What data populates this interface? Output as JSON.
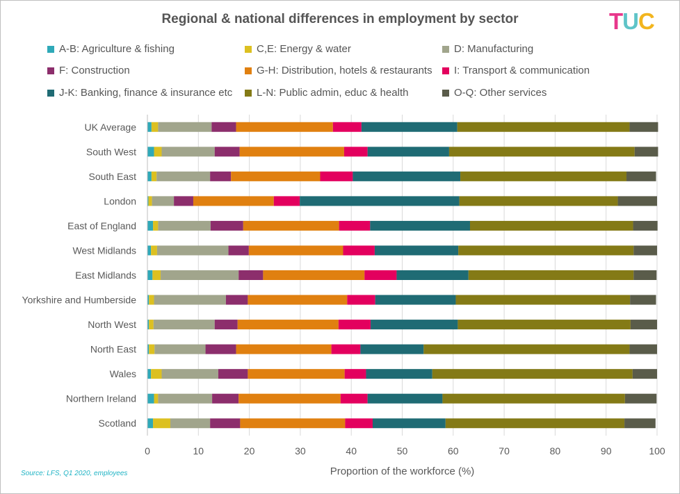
{
  "header": {
    "title": "Regional & national differences in employment by sector",
    "logo_letters": [
      "T",
      "U",
      "C"
    ],
    "logo_colors": [
      "#e8378b",
      "#5fc4c8",
      "#f2b51e"
    ]
  },
  "footer": {
    "source": "Source: LFS, Q1 2020, employees"
  },
  "chart_data": {
    "type": "bar",
    "orientation": "horizontal",
    "stacked": true,
    "title": "Regional & national differences in employment by sector",
    "xlabel": "Proportion of the workforce (%)",
    "ylabel": "",
    "xlim": [
      0,
      100
    ],
    "xticks": [
      0,
      10,
      20,
      30,
      40,
      50,
      60,
      70,
      80,
      90,
      100
    ],
    "grid": true,
    "legend_position": "top",
    "categories": [
      "UK Average",
      "South West",
      "South East",
      "London",
      "East of England",
      "West Midlands",
      "East Midlands",
      "Yorkshire and Humberside",
      "North West",
      "North East",
      "Wales",
      "Northern Ireland",
      "Scotland"
    ],
    "series": [
      {
        "name": "A-B: Agriculture & fishing",
        "color": "#2fa9b8",
        "values": [
          0.8,
          1.3,
          0.8,
          0.2,
          1.1,
          0.7,
          1.0,
          0.3,
          0.3,
          0.3,
          0.7,
          1.3,
          1.1
        ]
      },
      {
        "name": "C,E: Energy & water",
        "color": "#dcc021",
        "values": [
          1.3,
          1.5,
          1.0,
          0.7,
          1.0,
          1.2,
          1.6,
          1.0,
          0.9,
          1.1,
          2.1,
          0.8,
          3.4
        ]
      },
      {
        "name": "D: Manufacturing",
        "color": "#a1a58c",
        "values": [
          10.5,
          10.4,
          10.5,
          4.3,
          10.3,
          14.0,
          15.3,
          14.1,
          12.0,
          10.0,
          11.1,
          10.6,
          7.8
        ]
      },
      {
        "name": "F: Construction",
        "color": "#8c2e6c",
        "values": [
          4.8,
          4.9,
          4.1,
          3.8,
          6.4,
          4.0,
          4.8,
          4.3,
          4.5,
          6.0,
          5.8,
          5.2,
          5.9
        ]
      },
      {
        "name": "G-H: Distribution, hotels & restaurants",
        "color": "#e08010",
        "values": [
          19.0,
          20.5,
          17.5,
          15.8,
          18.8,
          18.5,
          19.9,
          19.5,
          19.8,
          18.7,
          19.0,
          20.0,
          20.6
        ]
      },
      {
        "name": "I: Transport & communication",
        "color": "#e3005e",
        "values": [
          5.6,
          4.6,
          6.4,
          5.1,
          6.1,
          6.2,
          6.3,
          5.5,
          6.3,
          5.7,
          4.2,
          5.3,
          5.4
        ]
      },
      {
        "name": "J-K: Banking, finance & insurance etc",
        "color": "#1f6b74",
        "values": [
          18.8,
          16.0,
          21.1,
          31.3,
          19.6,
          16.4,
          14.1,
          15.8,
          17.1,
          12.4,
          13.0,
          14.7,
          14.3
        ]
      },
      {
        "name": "L-N: Public admin, educ & health",
        "color": "#847a16",
        "values": [
          33.8,
          36.4,
          32.6,
          31.1,
          32.0,
          34.4,
          32.4,
          34.2,
          33.9,
          40.4,
          39.3,
          35.8,
          35.1
        ]
      },
      {
        "name": "O-Q: Other services",
        "color": "#5a5c4a",
        "values": [
          5.6,
          4.6,
          5.8,
          7.7,
          4.8,
          4.6,
          4.5,
          5.1,
          5.2,
          5.4,
          4.8,
          6.2,
          6.1
        ]
      }
    ]
  }
}
